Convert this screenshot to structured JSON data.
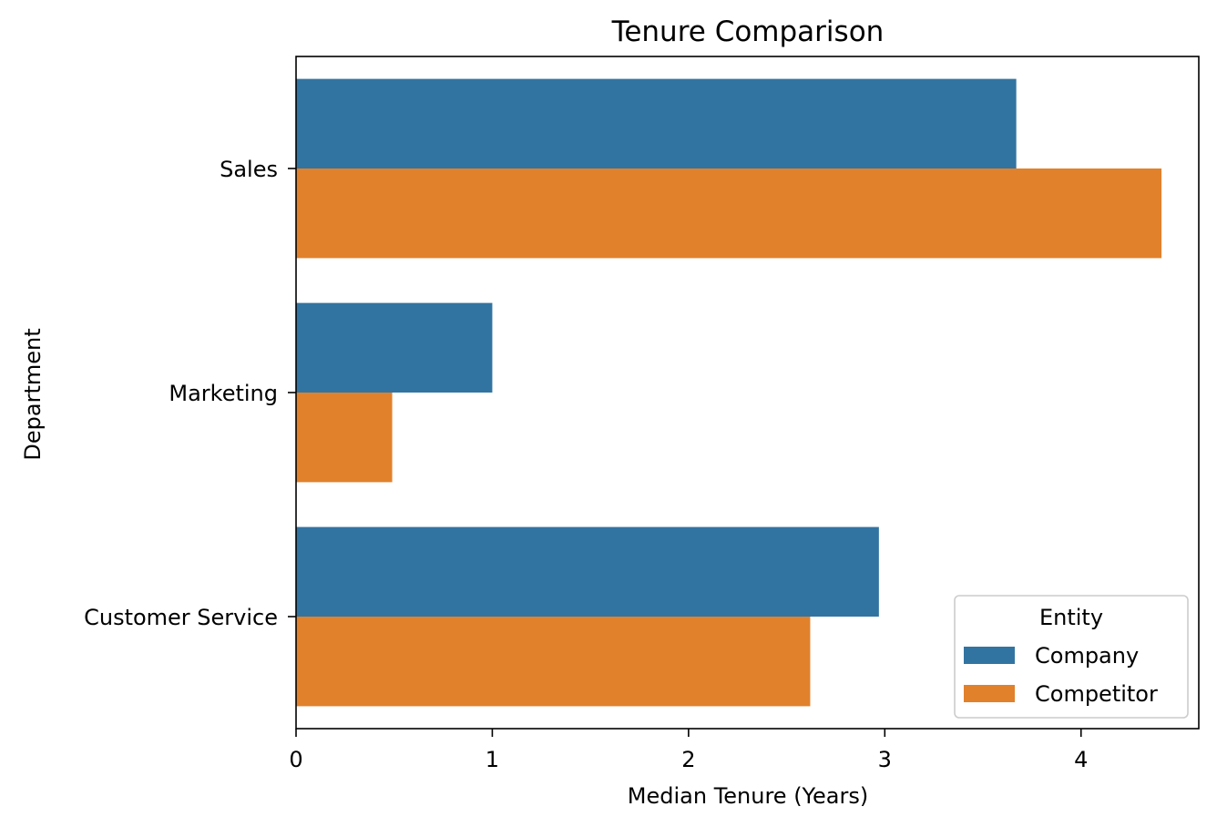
{
  "chart_data": {
    "type": "bar",
    "orientation": "horizontal",
    "title": "Tenure Comparison",
    "xlabel": "Median Tenure (Years)",
    "ylabel": "Department",
    "categories": [
      "Sales",
      "Marketing",
      "Customer Service"
    ],
    "series": [
      {
        "name": "Company",
        "color": "#3274a1",
        "values": [
          3.67,
          1.0,
          2.97
        ]
      },
      {
        "name": "Competitor",
        "color": "#e1812c",
        "values": [
          4.41,
          0.49,
          2.62
        ]
      }
    ],
    "xlim": [
      0,
      4.6
    ],
    "xticks": [
      0,
      1,
      2,
      3,
      4
    ],
    "grid": false,
    "legend": {
      "title": "Entity",
      "placement": "lower-right"
    }
  }
}
